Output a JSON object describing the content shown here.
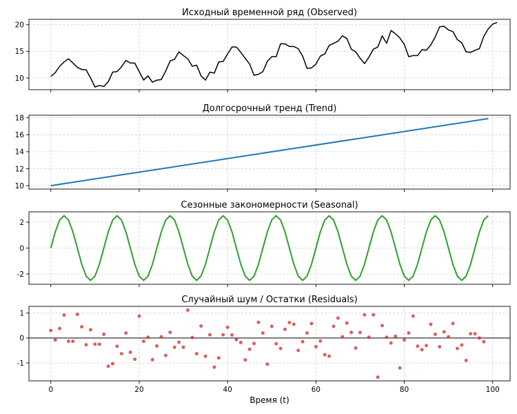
{
  "chart_data": [
    {
      "type": "line",
      "title": "Исходный временной ряд (Observed)",
      "series": [
        {
          "color": "#000000",
          "x_start": 0,
          "x_step": 1,
          "values": [
            10.3,
            11.0,
            12.2,
            13.0,
            13.6,
            12.8,
            12.0,
            11.6,
            11.5,
            10.0,
            8.3,
            8.6,
            8.4,
            9.3,
            11.1,
            11.2,
            12.1,
            13.3,
            12.8,
            12.8,
            11.2,
            9.6,
            10.4,
            9.2,
            9.6,
            9.7,
            11.3,
            13.2,
            13.5,
            14.9,
            14.2,
            13.6,
            12.2,
            12.4,
            10.4,
            9.6,
            11.1,
            10.9,
            13.0,
            13.1,
            14.5,
            15.8,
            15.8,
            14.8,
            13.7,
            12.6,
            10.5,
            10.7,
            11.2,
            13.1,
            14.0,
            14.0,
            16.4,
            16.4,
            15.9,
            15.9,
            15.5,
            14.1,
            11.8,
            11.9,
            12.6,
            14.1,
            14.5,
            16.1,
            16.5,
            16.9,
            17.9,
            17.4,
            15.4,
            14.9,
            13.7,
            12.7,
            13.9,
            15.4,
            15.8,
            17.9,
            16.5,
            18.9,
            18.3,
            17.5,
            16.3,
            14.0,
            14.2,
            14.2,
            15.3,
            15.2,
            16.2,
            17.7,
            19.6,
            19.7,
            19.0,
            18.7,
            17.2,
            16.6,
            14.9,
            14.8,
            15.2,
            15.5,
            17.8,
            19.2,
            20.1,
            20.4
          ]
        }
      ],
      "yticks": [
        10,
        15,
        20
      ],
      "ylim": [
        7.8,
        21.0
      ],
      "xlim": [
        -4.95,
        103.95
      ],
      "xticks": [
        0,
        20,
        40,
        60,
        80,
        100
      ],
      "grid": true
    },
    {
      "type": "line",
      "title": "Долгосрочный тренд (Trend)",
      "series": [
        {
          "color": "#1f77b4",
          "x": [
            0,
            99
          ],
          "values": [
            10.0,
            17.9
          ]
        }
      ],
      "yticks": [
        10,
        12,
        14,
        16,
        18
      ],
      "ylim": [
        9.6,
        18.3
      ],
      "xlim": [
        -4.95,
        103.95
      ],
      "xticks": [
        0,
        20,
        40,
        60,
        80,
        100
      ],
      "grid": true
    },
    {
      "type": "line",
      "title": "Сезонные закономерности (Seasonal)",
      "series": [
        {
          "color": "#2ca02c",
          "x_start": 0,
          "x_step": 1,
          "values": [
            0.0,
            1.25,
            2.17,
            2.5,
            2.17,
            1.25,
            0.0,
            -1.25,
            -2.17,
            -2.5,
            -2.17,
            -1.25,
            0.0,
            1.25,
            2.17,
            2.5,
            2.17,
            1.25,
            0.0,
            -1.25,
            -2.17,
            -2.5,
            -2.17,
            -1.25,
            0.0,
            1.25,
            2.17,
            2.5,
            2.17,
            1.25,
            0.0,
            -1.25,
            -2.17,
            -2.5,
            -2.17,
            -1.25,
            0.0,
            1.25,
            2.17,
            2.5,
            2.17,
            1.25,
            0.0,
            -1.25,
            -2.17,
            -2.5,
            -2.17,
            -1.25,
            0.0,
            1.25,
            2.17,
            2.5,
            2.17,
            1.25,
            0.0,
            -1.25,
            -2.17,
            -2.5,
            -2.17,
            -1.25,
            0.0,
            1.25,
            2.17,
            2.5,
            2.17,
            1.25,
            0.0,
            -1.25,
            -2.17,
            -2.5,
            -2.17,
            -1.25,
            0.0,
            1.25,
            2.17,
            2.5,
            2.17,
            1.25,
            0.0,
            -1.25,
            -2.17,
            -2.5,
            -2.17,
            -1.25,
            0.0,
            1.25,
            2.17,
            2.5,
            2.17,
            1.25,
            0.0,
            -1.25,
            -2.17,
            -2.5,
            -2.17,
            -1.25,
            0.0,
            1.25,
            2.17,
            2.5
          ]
        }
      ],
      "yticks": [
        -2,
        0,
        2
      ],
      "ylim": [
        -2.8,
        2.8
      ],
      "xlim": [
        -4.95,
        103.95
      ],
      "xticks": [
        0,
        20,
        40,
        60,
        80,
        100
      ],
      "grid": true
    },
    {
      "type": "scatter",
      "title": "Случайный шум / Остатки (Residuals)",
      "series": [
        {
          "color": "#d62728",
          "x_start": 0,
          "x_step": 1,
          "values": [
            0.3,
            -0.08,
            0.38,
            0.92,
            -0.13,
            -0.13,
            0.95,
            0.45,
            -0.27,
            0.33,
            -0.25,
            -0.25,
            0.15,
            -1.13,
            -1.03,
            -0.33,
            -0.63,
            0.2,
            -0.57,
            -0.85,
            0.88,
            -0.13,
            0.03,
            -0.87,
            -0.32,
            0.05,
            -0.7,
            0.23,
            -0.37,
            -0.17,
            -0.37,
            1.12,
            0.02,
            -0.63,
            0.48,
            -0.73,
            0.13,
            -1.17,
            -0.8,
            0.13,
            0.43,
            0.12,
            -0.07,
            -0.18,
            -0.88,
            -0.45,
            -0.22,
            0.63,
            0.2,
            -1.05,
            0.47,
            -0.23,
            -0.42,
            0.35,
            0.62,
            0.55,
            -0.5,
            -0.15,
            0.2,
            0.58,
            -0.35,
            -0.12,
            -0.67,
            -0.73,
            0.47,
            0.8,
            0.05,
            0.6,
            0.23,
            -0.4,
            0.22,
            0.93,
            0.03,
            0.93,
            -1.57,
            0.5,
            0.03,
            -0.2,
            0.07,
            -1.2,
            -0.08,
            0.2,
            0.88,
            -0.33,
            -0.47,
            -0.3,
            0.55,
            0.15,
            -0.35,
            0.25,
            0.05,
            0.58,
            -0.42,
            -0.28,
            -0.9,
            0.17,
            0.17,
            0.0,
            -0.15
          ]
        }
      ],
      "baseline": 0,
      "yticks": [
        -1,
        0,
        1
      ],
      "ylim": [
        -1.72,
        1.27
      ],
      "xlim": [
        -4.95,
        103.95
      ],
      "xticks": [
        0,
        20,
        40,
        60,
        80,
        100
      ],
      "xlabel": "Время (t)",
      "grid": true
    }
  ]
}
